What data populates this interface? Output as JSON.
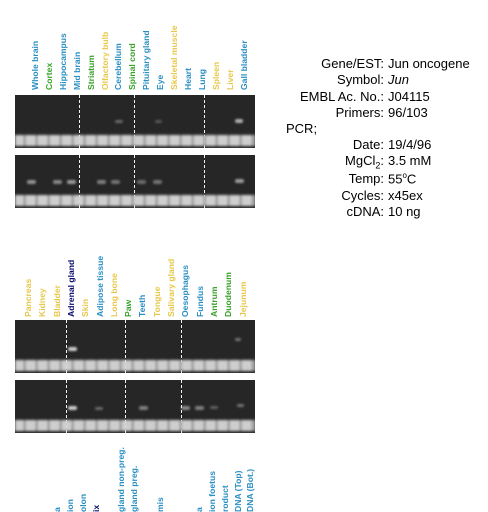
{
  "colors": {
    "blue": "#2a8fc2",
    "green": "#3aa12a",
    "yellow": "#e7c84a",
    "navy": "#0a0a6e",
    "gel": "#262626"
  },
  "panel1": {
    "labels": [
      {
        "text": "Whole brain",
        "c": "blue"
      },
      {
        "text": "Cortex",
        "c": "green"
      },
      {
        "text": "Hippocampus",
        "c": "blue"
      },
      {
        "text": "Mid brain",
        "c": "blue"
      },
      {
        "text": "Striatum",
        "c": "green"
      },
      {
        "text": "Olfactory bulb",
        "c": "yellow"
      },
      {
        "text": "Cerebellum",
        "c": "blue"
      },
      {
        "text": "Spinal cord",
        "c": "green"
      },
      {
        "text": "Pituitary gland",
        "c": "blue"
      },
      {
        "text": "Eye",
        "c": "blue"
      },
      {
        "text": "Skeletal muscle",
        "c": "yellow"
      },
      {
        "text": "Heart",
        "c": "blue"
      },
      {
        "text": "Lung",
        "c": "blue"
      },
      {
        "text": "Spleen",
        "c": "yellow"
      },
      {
        "text": "Liver",
        "c": "yellow"
      },
      {
        "text": "Gall bladder",
        "c": "blue"
      }
    ]
  },
  "panel2": {
    "labels": [
      {
        "text": "Pancreas",
        "c": "yellow"
      },
      {
        "text": "Kidney",
        "c": "yellow"
      },
      {
        "text": "Bladder",
        "c": "yellow"
      },
      {
        "text": "Adrenal gland",
        "c": "navy"
      },
      {
        "text": "Skin",
        "c": "yellow"
      },
      {
        "text": "Adipose tissue",
        "c": "blue"
      },
      {
        "text": "Long bone",
        "c": "yellow"
      },
      {
        "text": "Paw",
        "c": "green"
      },
      {
        "text": "Teeth",
        "c": "blue"
      },
      {
        "text": "Tongue",
        "c": "yellow"
      },
      {
        "text": "Salivary gland",
        "c": "yellow"
      },
      {
        "text": "Oesophagus",
        "c": "blue"
      },
      {
        "text": "Fundus",
        "c": "blue"
      },
      {
        "text": "Antrum",
        "c": "green"
      },
      {
        "text": "Duodenum",
        "c": "green"
      },
      {
        "text": "Jejunum",
        "c": "yellow"
      }
    ]
  },
  "panel3": {
    "labels": [
      {
        "text": "",
        "c": "blue"
      },
      {
        "text": "a",
        "c": "blue"
      },
      {
        "text": "ion",
        "c": "blue"
      },
      {
        "text": "olon",
        "c": "blue"
      },
      {
        "text": "ix",
        "c": "navy"
      },
      {
        "text": "",
        "c": "blue"
      },
      {
        "text": "gland non-preg.",
        "c": "blue"
      },
      {
        "text": "gland preg.",
        "c": "blue"
      },
      {
        "text": "",
        "c": "blue"
      },
      {
        "text": "mis",
        "c": "blue"
      },
      {
        "text": "",
        "c": "blue"
      },
      {
        "text": "",
        "c": "blue"
      },
      {
        "text": "a",
        "c": "blue"
      },
      {
        "text": "ion foetus",
        "c": "blue"
      },
      {
        "text": "roduct",
        "c": "blue"
      },
      {
        "text": "DNA (Top)",
        "c": "blue"
      },
      {
        "text": "DNA (Bot.)",
        "c": "blue"
      }
    ]
  },
  "info": {
    "gene": {
      "k": "Gene/EST:",
      "v": "Jun oncogene"
    },
    "symbol": {
      "k": "Symbol:",
      "v": "Jun"
    },
    "embl": {
      "k": "EMBL Ac. No.:",
      "v": "J04115"
    },
    "primers": {
      "k": "Primers:",
      "v": "96/103"
    },
    "pcr": "PCR;",
    "date": {
      "k": "Date:",
      "v": "19/4/96"
    },
    "mgcl": {
      "k": "MgCl",
      "sub": "2",
      "colon": ":",
      "v": "3.5 mM"
    },
    "temp": {
      "k": "Temp:",
      "v": "55",
      "sup": "o",
      "unit": "C"
    },
    "cycles": {
      "k": "Cycles:",
      "v": "x45ex"
    },
    "cdna": {
      "k": "cDNA:",
      "v": "10 ng"
    }
  }
}
